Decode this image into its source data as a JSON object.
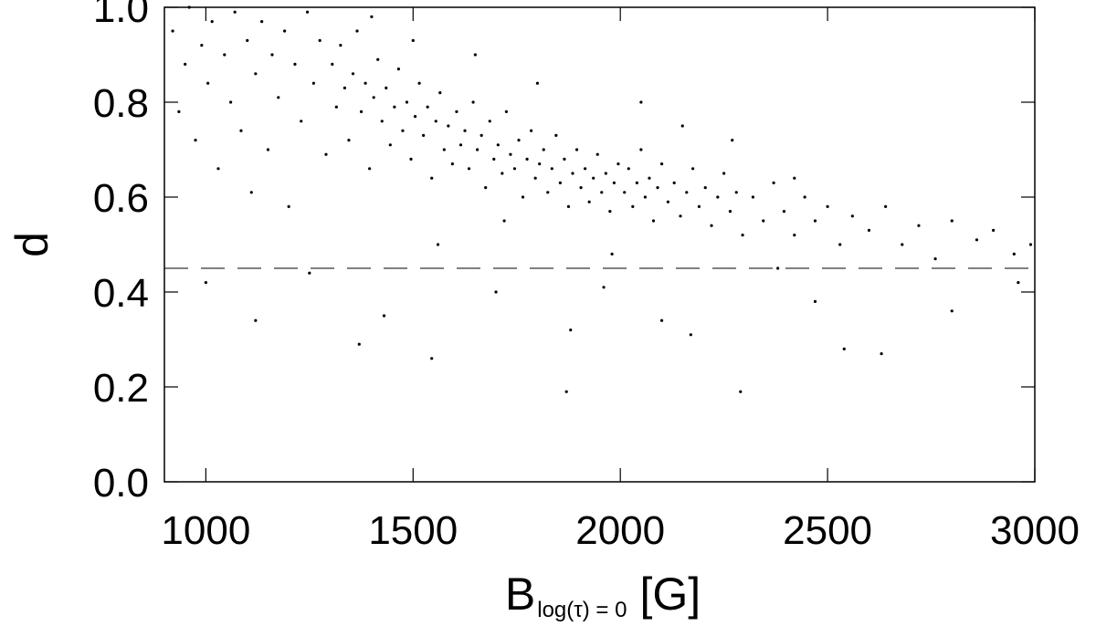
{
  "chart_data": {
    "type": "scatter",
    "x_label": "B",
    "x_label_subscript": "log(τ) = 0",
    "x_label_unit": "[G]",
    "y_label": "d",
    "color": "#000000",
    "xlim": [
      900,
      3000
    ],
    "xticks": [
      1000,
      1500,
      2000,
      2500,
      3000
    ],
    "ylim": [
      0,
      1
    ],
    "yticks": [
      {
        "value": 0,
        "label": "0.0"
      },
      0.2,
      0.4,
      0.6,
      0.8,
      {
        "value": 1,
        "label": "1.0"
      }
    ],
    "reference_line": 0.45,
    "x": [
      920,
      935,
      950,
      960,
      975,
      990,
      1005,
      1015,
      1030,
      1045,
      1060,
      1070,
      1085,
      1100,
      1110,
      1120,
      1135,
      1150,
      1160,
      1175,
      1190,
      1200,
      1215,
      1230,
      1245,
      1260,
      1275,
      1290,
      1305,
      1315,
      1325,
      1335,
      1345,
      1355,
      1365,
      1375,
      1385,
      1395,
      1405,
      1415,
      1425,
      1435,
      1445,
      1455,
      1465,
      1475,
      1485,
      1495,
      1505,
      1515,
      1525,
      1535,
      1545,
      1555,
      1565,
      1575,
      1585,
      1595,
      1605,
      1615,
      1625,
      1635,
      1645,
      1655,
      1665,
      1675,
      1685,
      1695,
      1705,
      1715,
      1725,
      1735,
      1745,
      1755,
      1765,
      1775,
      1785,
      1795,
      1805,
      1815,
      1825,
      1835,
      1845,
      1855,
      1865,
      1875,
      1885,
      1895,
      1905,
      1915,
      1925,
      1935,
      1945,
      1955,
      1965,
      1975,
      1985,
      1995,
      2010,
      2020,
      2030,
      2040,
      2050,
      2060,
      2070,
      2080,
      2090,
      2100,
      2115,
      2130,
      2145,
      2160,
      2175,
      2190,
      2205,
      2220,
      2235,
      2250,
      2265,
      2280,
      2295,
      2320,
      2345,
      2370,
      2395,
      2420,
      2445,
      2470,
      2500,
      2530,
      2560,
      2600,
      2640,
      2680,
      2720,
      2760,
      2800,
      2860,
      2900,
      2950,
      2990,
      1370,
      1545,
      1870,
      2290,
      2630,
      2540,
      1120,
      1430,
      2170,
      2800,
      1000,
      1700,
      2100,
      1880,
      1250,
      1960,
      2470,
      2960,
      1400,
      1500,
      1650,
      1800,
      2050,
      2150,
      2270,
      2420,
      1720,
      1560,
      2380,
      1980
    ],
    "values": [
      0.95,
      0.78,
      0.88,
      1.0,
      0.72,
      0.92,
      0.84,
      0.97,
      0.66,
      0.9,
      0.8,
      0.99,
      0.74,
      0.93,
      0.61,
      0.86,
      0.97,
      0.7,
      0.9,
      0.81,
      0.95,
      0.58,
      0.88,
      0.76,
      0.99,
      0.84,
      0.93,
      0.69,
      0.88,
      0.79,
      0.92,
      0.83,
      0.72,
      0.86,
      0.95,
      0.78,
      0.84,
      0.66,
      0.81,
      0.89,
      0.76,
      0.83,
      0.71,
      0.79,
      0.87,
      0.74,
      0.8,
      0.68,
      0.77,
      0.84,
      0.73,
      0.79,
      0.64,
      0.76,
      0.82,
      0.7,
      0.75,
      0.67,
      0.78,
      0.71,
      0.74,
      0.66,
      0.8,
      0.7,
      0.73,
      0.62,
      0.76,
      0.68,
      0.71,
      0.65,
      0.78,
      0.69,
      0.66,
      0.72,
      0.6,
      0.68,
      0.74,
      0.64,
      0.67,
      0.7,
      0.61,
      0.66,
      0.73,
      0.63,
      0.68,
      0.58,
      0.65,
      0.7,
      0.62,
      0.66,
      0.59,
      0.64,
      0.69,
      0.61,
      0.65,
      0.57,
      0.63,
      0.67,
      0.61,
      0.66,
      0.58,
      0.63,
      0.7,
      0.6,
      0.64,
      0.55,
      0.62,
      0.67,
      0.59,
      0.63,
      0.56,
      0.61,
      0.66,
      0.58,
      0.62,
      0.54,
      0.6,
      0.65,
      0.57,
      0.61,
      0.52,
      0.6,
      0.55,
      0.63,
      0.57,
      0.52,
      0.6,
      0.55,
      0.58,
      0.5,
      0.56,
      0.53,
      0.58,
      0.5,
      0.54,
      0.47,
      0.55,
      0.51,
      0.53,
      0.48,
      0.5,
      0.29,
      0.26,
      0.19,
      0.19,
      0.27,
      0.28,
      0.34,
      0.35,
      0.31,
      0.36,
      0.42,
      0.4,
      0.34,
      0.32,
      0.44,
      0.41,
      0.38,
      0.42,
      0.98,
      0.93,
      0.9,
      0.84,
      0.8,
      0.75,
      0.72,
      0.64,
      0.55,
      0.5,
      0.45,
      0.48
    ]
  }
}
